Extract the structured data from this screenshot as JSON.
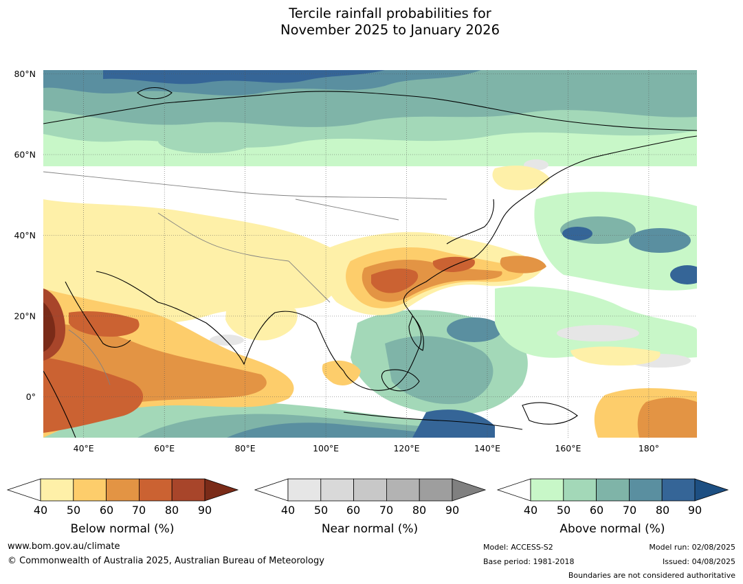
{
  "title": {
    "line1": "Tercile rainfall probabilities for",
    "line2": "November 2025 to January 2026"
  },
  "map": {
    "lat_labels": [
      "80°N",
      "60°N",
      "40°N",
      "20°N",
      "0°"
    ],
    "lon_labels": [
      "40°E",
      "60°E",
      "80°E",
      "100°E",
      "120°E",
      "140°E",
      "160°E",
      "180°"
    ],
    "lat_range": [
      -10,
      80
    ],
    "lon_range": [
      30,
      192
    ]
  },
  "colorbars": [
    {
      "id": "below",
      "title": "Below normal (%)",
      "ticks": [
        "40",
        "50",
        "60",
        "70",
        "80",
        "90"
      ],
      "colors": [
        "#fef0a8",
        "#fdcd6b",
        "#e39444",
        "#cb6232",
        "#a8452a",
        "#7a2b18"
      ]
    },
    {
      "id": "near",
      "title": "Near normal (%)",
      "ticks": [
        "40",
        "50",
        "60",
        "70",
        "80",
        "90"
      ],
      "colors": [
        "#e6e6e6",
        "#d9d9d9",
        "#c8c8c8",
        "#b3b3b3",
        "#9e9e9e",
        "#808080"
      ]
    },
    {
      "id": "above",
      "title": "Above normal (%)",
      "ticks": [
        "40",
        "50",
        "60",
        "70",
        "80",
        "90"
      ],
      "colors": [
        "#c8f7c8",
        "#a3d8b8",
        "#7fb4a8",
        "#5a8fa0",
        "#356597",
        "#1d4f82"
      ]
    }
  ],
  "footer": {
    "website": "www.bom.gov.au/climate",
    "copyright": "© Commonwealth of Australia 2025, Australian Bureau of Meteorology",
    "model": "Model: ACCESS-S2",
    "base_period": "Base period: 1981-2018",
    "model_run": "Model run: 02/08/2025",
    "issued": "Issued: 04/08/2025",
    "boundaries_note": "Boundaries are not considered authoritative"
  }
}
